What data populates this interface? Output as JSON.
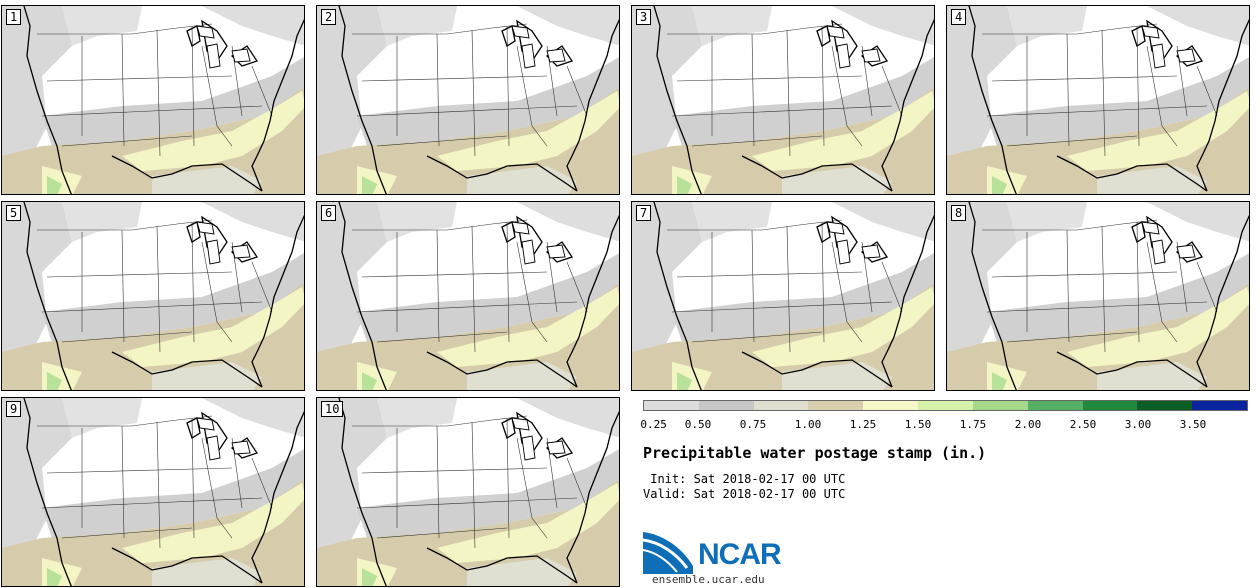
{
  "panels": [
    "1",
    "2",
    "3",
    "4",
    "5",
    "6",
    "7",
    "8",
    "9",
    "10"
  ],
  "colorbar": {
    "ticks": [
      "0.25",
      "0.50",
      "0.75",
      "1.00",
      "1.25",
      "1.50",
      "1.75",
      "2.00",
      "2.50",
      "3.00",
      "3.50"
    ],
    "colors": [
      "#dcdcdc",
      "#c8c8c8",
      "#e0e0d0",
      "#d9cfae",
      "#f6f8c8",
      "#d6f2a8",
      "#a6d88a",
      "#55b065",
      "#1f8a3e",
      "#0d5e24",
      "#0a24a0"
    ]
  },
  "title": "Precipitable water postage stamp (in.)",
  "init_line": " Init: Sat 2018-02-17 00 UTC",
  "valid_line": "Valid: Sat 2018-02-17 00 UTC",
  "logo_text": "NCAR",
  "website": "ensemble.ucar.edu"
}
